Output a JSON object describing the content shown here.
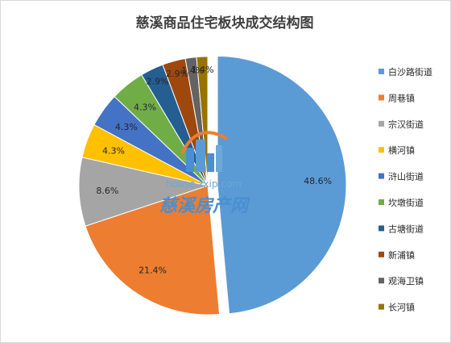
{
  "chart_data": {
    "type": "pie",
    "title": "慈溪商品住宅板块成交结构图",
    "categories": [
      "白沙路街道",
      "周巷镇",
      "宗汉街道",
      "横河镇",
      "浒山街道",
      "坎墩街道",
      "古塘街道",
      "新浦镇",
      "观海卫镇",
      "长河镇"
    ],
    "values": [
      48.6,
      21.4,
      8.6,
      4.3,
      4.3,
      4.3,
      2.9,
      2.9,
      1.4,
      1.4
    ],
    "labels": [
      "48.6%",
      "21.4%",
      "8.6%",
      "4.3%",
      "4.3%",
      "4.3%",
      "2.9%",
      "2.9%",
      "1.4%",
      "1.4%"
    ],
    "colors": [
      "#5b9bd5",
      "#ed7d31",
      "#a5a5a5",
      "#ffc000",
      "#4472c4",
      "#70ad47",
      "#255e91",
      "#9e480e",
      "#636363",
      "#997300"
    ],
    "legend_position": "right",
    "exploded_slice": "白沙路街道"
  },
  "watermark": {
    "url": "house.zxip.com",
    "name": "慈溪房产网"
  }
}
